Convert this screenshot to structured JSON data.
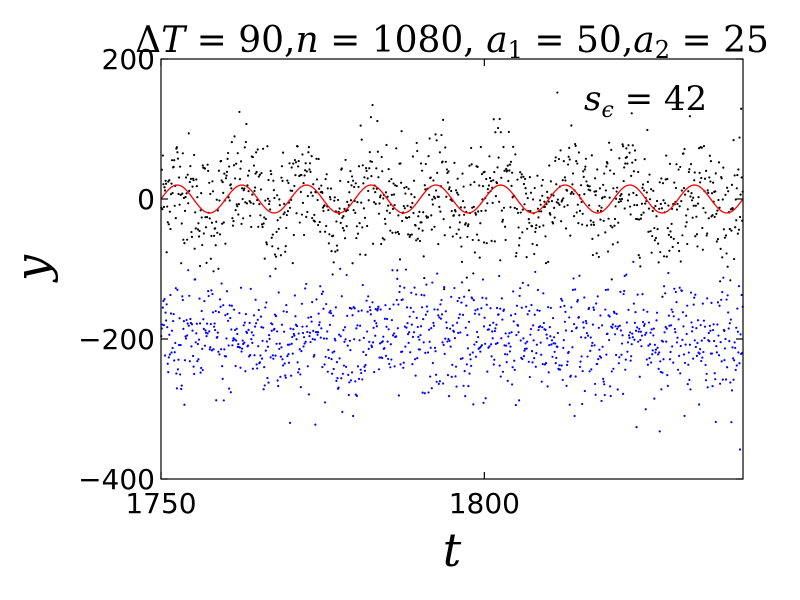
{
  "chart_data": {
    "type": "scatter",
    "title_parts": {
      "delta": "Δ",
      "T_sym": "T",
      "eq1": " = 90,",
      "n_sym": "n",
      "eq2": " = 1080, ",
      "a_sym1": "a",
      "sub1": "1",
      "eq3": " = 50,",
      "a_sym2": "a",
      "sub2": "2",
      "eq4": " = 25"
    },
    "annotation_parts": {
      "s_sym": "s",
      "sub": "ϵ",
      "eq": " = 42"
    },
    "xlabel": "t",
    "ylabel": "y",
    "xlim": [
      1750,
      1840
    ],
    "ylim": [
      -400,
      200
    ],
    "xticks": [
      1750,
      1800
    ],
    "xtick_labels": [
      "1750",
      "1800"
    ],
    "yticks": [
      200,
      0,
      -200,
      -400
    ],
    "ytick_labels": [
      "200",
      "0",
      "−200",
      "−400"
    ],
    "grid": false,
    "series": [
      {
        "label": "black-points",
        "color": "#000000",
        "marker": "dot",
        "point_count": 1080,
        "center": 0,
        "amplitude": 20,
        "period": 10,
        "noise_sd": 42
      },
      {
        "label": "blue-points",
        "color": "#0000ff",
        "marker": "dot",
        "point_count": 1080,
        "center": -200,
        "noise_sd": 42
      },
      {
        "label": "red-curve",
        "color": "#ff0000",
        "line": true,
        "amplitude": 20,
        "period": 10,
        "phase_start": 1750
      }
    ]
  }
}
